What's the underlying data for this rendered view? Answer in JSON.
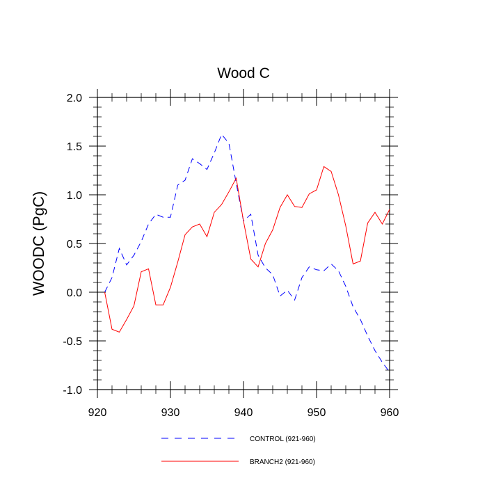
{
  "chart_data": {
    "type": "line",
    "title": "Wood C",
    "xlabel": "",
    "ylabel": "WOODC  (PgC)",
    "xlim": [
      921,
      960
    ],
    "ylim": [
      -1.0,
      2.0
    ],
    "x_ticks": [
      920,
      930,
      940,
      950,
      960
    ],
    "x_tick_labels": [
      "920",
      "930",
      "940",
      "950",
      "960"
    ],
    "y_ticks": [
      -1.0,
      -0.5,
      0.0,
      0.5,
      1.0,
      1.5,
      2.0
    ],
    "y_tick_labels": [
      "-1.0",
      "-0.5",
      "0.0",
      "0.5",
      "1.0",
      "1.5",
      "2.0"
    ],
    "grid": false,
    "legend_position": "bottom",
    "x": [
      921,
      922,
      923,
      924,
      925,
      926,
      927,
      928,
      929,
      930,
      931,
      932,
      933,
      934,
      935,
      936,
      937,
      938,
      939,
      940,
      941,
      942,
      943,
      944,
      945,
      946,
      947,
      948,
      949,
      950,
      951,
      952,
      953,
      954,
      955,
      956,
      957,
      958,
      959,
      960
    ],
    "series": [
      {
        "name": "CONTROL (921-960)",
        "color": "#0000ff",
        "dash": "dashed",
        "values": [
          0.0,
          0.15,
          0.45,
          0.28,
          0.38,
          0.52,
          0.7,
          0.8,
          0.77,
          0.77,
          1.1,
          1.15,
          1.37,
          1.32,
          1.26,
          1.43,
          1.62,
          1.53,
          1.12,
          0.73,
          0.8,
          0.38,
          0.25,
          0.18,
          -0.04,
          0.02,
          -0.08,
          0.15,
          0.26,
          0.23,
          0.22,
          0.29,
          0.22,
          0.06,
          -0.15,
          -0.28,
          -0.45,
          -0.6,
          -0.72,
          -0.82
        ]
      },
      {
        "name": "BRANCH2 (921-960)",
        "color": "#ff0000",
        "dash": "solid",
        "values": [
          0.0,
          -0.38,
          -0.41,
          -0.28,
          -0.14,
          0.21,
          0.24,
          -0.13,
          -0.13,
          0.05,
          0.31,
          0.59,
          0.67,
          0.7,
          0.57,
          0.82,
          0.9,
          1.03,
          1.17,
          0.73,
          0.34,
          0.26,
          0.5,
          0.64,
          0.87,
          1.0,
          0.88,
          0.87,
          1.01,
          1.05,
          1.29,
          1.24,
          1.0,
          0.68,
          0.29,
          0.32,
          0.71,
          0.82,
          0.7,
          0.85
        ]
      }
    ]
  }
}
